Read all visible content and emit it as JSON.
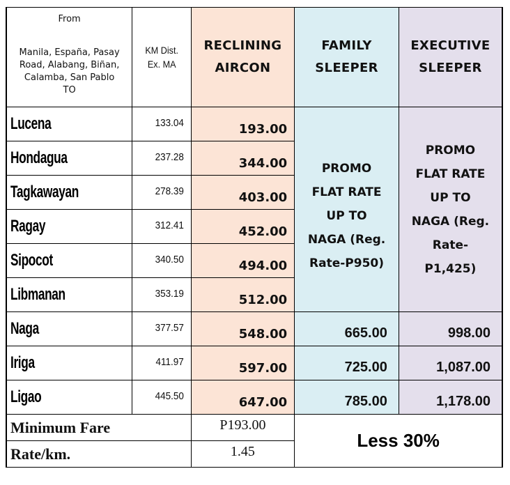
{
  "header": {
    "from_label": "From",
    "origins": "Manila, España, Pasay Road, Alabang, Biñan, Calamba, San Pablo",
    "to_label": "TO",
    "km_label_line1": "KM Dist.",
    "km_label_line2": "Ex. MA",
    "classes": [
      {
        "line1": "RECLINING",
        "line2": "AIRCON",
        "color": "#fce4d6"
      },
      {
        "line1": "FAMILY",
        "line2": "SLEEPER",
        "color": "#daeef3"
      },
      {
        "line1": "EXECUTIVE",
        "line2": "SLEEPER",
        "color": "#e4dfec"
      }
    ]
  },
  "rows": [
    {
      "destination": "Lucena",
      "km": "133.04",
      "reclining": "193.00"
    },
    {
      "destination": "Hondagua",
      "km": "237.28",
      "reclining": "344.00"
    },
    {
      "destination": "Tagkawayan",
      "km": "278.39",
      "reclining": "403.00"
    },
    {
      "destination": "Ragay",
      "km": "312.41",
      "reclining": "452.00"
    },
    {
      "destination": "Sipocot",
      "km": "340.50",
      "reclining": "494.00"
    },
    {
      "destination": "Libmanan",
      "km": "353.19",
      "reclining": "512.00"
    },
    {
      "destination": "Naga",
      "km": "377.57",
      "reclining": "548.00",
      "family": "665.00",
      "executive": "998.00"
    },
    {
      "destination": "Iriga",
      "km": "411.97",
      "reclining": "597.00",
      "family": "725.00",
      "executive": "1,087.00"
    },
    {
      "destination": "Ligao",
      "km": "445.50",
      "reclining": "647.00",
      "family": "785.00",
      "executive": "1,178.00"
    }
  ],
  "promo": {
    "family": [
      "PROMO",
      "FLAT RATE",
      "UP TO",
      "NAGA (Reg.",
      "Rate-P950)"
    ],
    "executive": [
      "PROMO",
      "FLAT RATE",
      "UP TO",
      "NAGA (Reg.",
      "Rate-",
      "P1,425)"
    ]
  },
  "footer": {
    "minimum_fare_label": "Minimum Fare",
    "minimum_fare_value": "P193.00",
    "rate_label": "Rate/km.",
    "rate_value": "1.45",
    "discount": "Less 30%"
  }
}
